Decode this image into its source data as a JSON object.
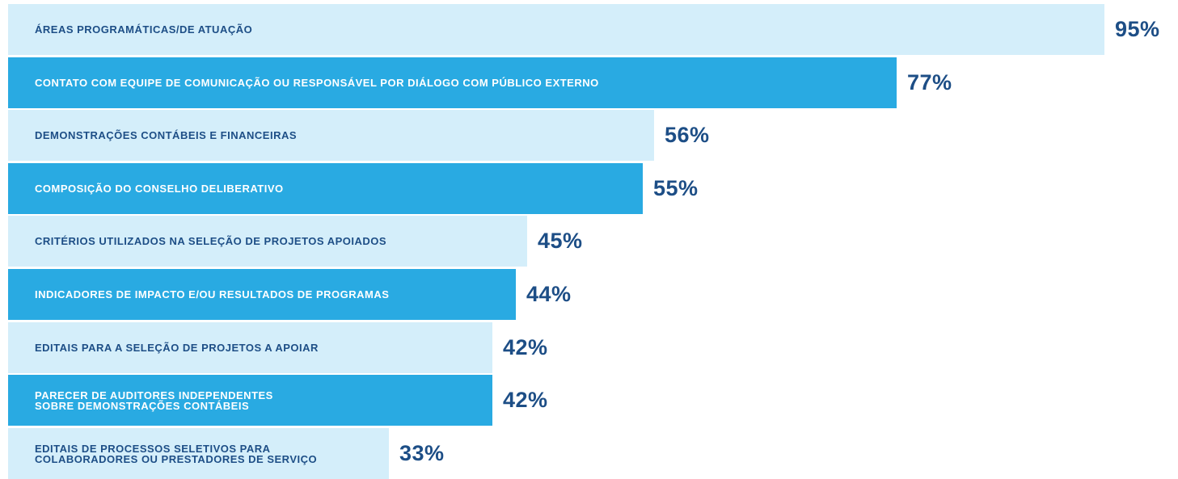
{
  "chart_data": {
    "type": "bar",
    "orientation": "horizontal",
    "categories": [
      "ÁREAS PROGRAMÁTICAS/DE ATUAÇÃO",
      "CONTATO COM EQUIPE DE COMUNICAÇÃO OU RESPONSÁVEL POR DIÁLOGO COM PÚBLICO EXTERNO",
      "DEMONSTRAÇÕES CONTÁBEIS E FINANCEIRAS",
      "COMPOSIÇÃO DO CONSELHO DELIBERATIVO",
      "CRITÉRIOS UTILIZADOS NA SELEÇÃO DE PROJETOS APOIADOS",
      "INDICADORES DE IMPACTO E/OU RESULTADOS DE PROGRAMAS",
      "EDITAIS PARA A SELEÇÃO DE PROJETOS A APOIAR",
      "PARECER DE AUDITORES INDEPENDENTES\nSOBRE DEMONSTRAÇÕES CONTÁBEIS",
      "EDITAIS DE PROCESSOS SELETIVOS PARA\nCOLABORADORES OU PRESTADORES DE SERVIÇO"
    ],
    "values": [
      95,
      77,
      56,
      55,
      45,
      44,
      42,
      42,
      33
    ],
    "value_labels": [
      "95%",
      "77%",
      "56%",
      "55%",
      "45%",
      "44%",
      "42%",
      "42%",
      "33%"
    ],
    "unit": "%",
    "xlim": [
      0,
      100
    ],
    "grid": false,
    "legend": "none",
    "colors": {
      "light_bar": "#d4eefa",
      "dark_bar": "#29aae2",
      "light_bar_text": "#1d4e86",
      "dark_bar_text": "#ffffff",
      "value_text": "#1d4e86"
    }
  }
}
